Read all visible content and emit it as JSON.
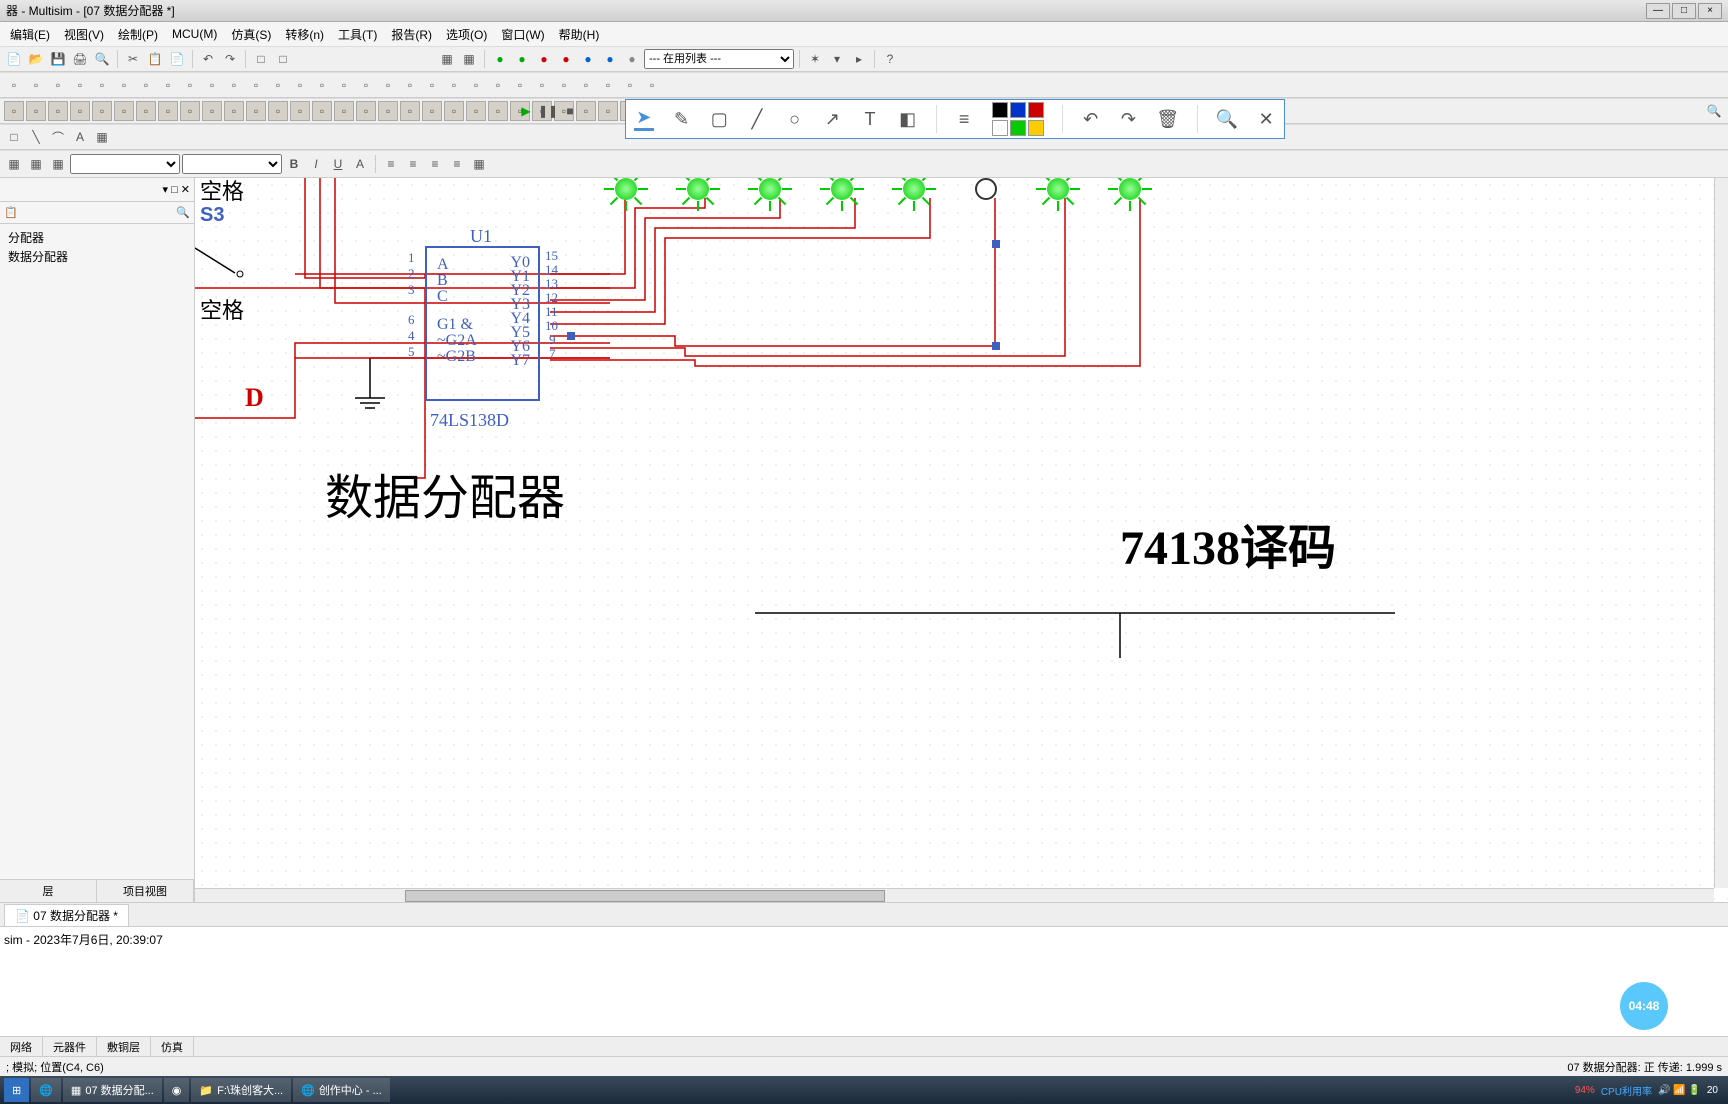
{
  "title": "器 - Multisim - [07 数据分配器 *]",
  "menu": [
    "编辑(E)",
    "视图(V)",
    "绘制(P)",
    "MCU(M)",
    "仿真(S)",
    "转移(n)",
    "工具(T)",
    "报告(R)",
    "选项(O)",
    "窗口(W)",
    "帮助(H)"
  ],
  "toolbar_select": "--- 在用列表 ---",
  "sidebar": {
    "items": [
      "分配器",
      "数据分配器"
    ],
    "tabs": [
      "层",
      "项目视图"
    ]
  },
  "annotation_colors": {
    "r1": [
      "#000000",
      "#0033cc",
      "#cc0000"
    ],
    "r2": [
      "#ffffff",
      "#00cc00",
      "#ffcc00"
    ]
  },
  "schematic": {
    "labels": {
      "s3": "S3",
      "space1": "空格",
      "space2": "空格",
      "D": "D",
      "U1": "U1",
      "chip": "74LS138D",
      "title": "数据分配器",
      "title2": "74138译码"
    },
    "chip_pins_left": [
      "A",
      "B",
      "C",
      "G1 &",
      "~G2A",
      "~G2B"
    ],
    "chip_pins_left_num": [
      "1",
      "2",
      "3",
      "6",
      "4",
      "5"
    ],
    "chip_pins_right": [
      "Y0",
      "Y1",
      "Y2",
      "Y3",
      "Y4",
      "Y5",
      "Y6",
      "Y7"
    ],
    "chip_pins_right_num": [
      "15",
      "14",
      "13",
      "12",
      "11",
      "10",
      "9",
      "7"
    ],
    "leds": [
      true,
      true,
      true,
      true,
      true,
      false,
      true,
      true
    ]
  },
  "doc_tab": "07 数据分配器 *",
  "output_line": "sim  -  2023年7月6日, 20:39:07",
  "output_tabs": [
    "网络",
    "元器件",
    "敷铜层",
    "仿真"
  ],
  "status_left": "; 模拟; 位置(C4, C6)",
  "status_right": "07 数据分配器: 正 传递: 1.999 s",
  "taskbar": {
    "items": [
      "07 数据分配...",
      "",
      "F:\\珠创客大...",
      "创作中心 - ..."
    ],
    "cpu": "94%",
    "cpu_label": "CPU利用率",
    "time": "20"
  },
  "timer": "04:48"
}
